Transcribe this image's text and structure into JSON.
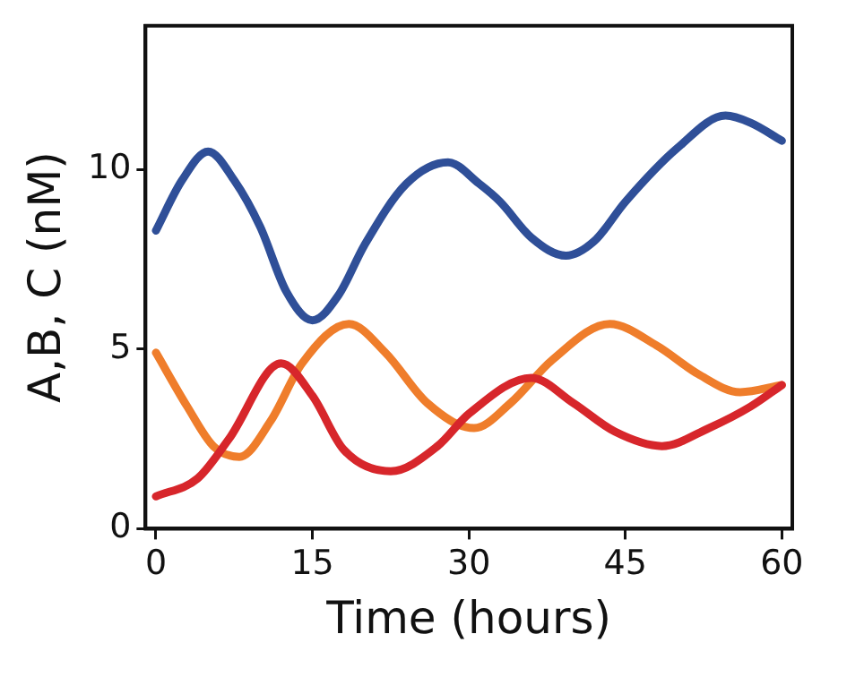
{
  "chart_data": {
    "type": "line",
    "xlabel": "Time (hours)",
    "ylabel": "A,B, C (nM)",
    "xlim": [
      -1,
      61
    ],
    "xticks": [
      0,
      15,
      30,
      45,
      60
    ],
    "ylim": [
      0,
      14
    ],
    "yticks": [
      0,
      5,
      10
    ],
    "grid": false,
    "legend": false,
    "marker": "none",
    "line_style": "solid",
    "series": [
      {
        "color": "#d7262b",
        "x": [
          0,
          4,
          7,
          12,
          15,
          18,
          22.5,
          27,
          30,
          36,
          40,
          44,
          48.5,
          53,
          57,
          60
        ],
        "values": [
          0.9,
          1.4,
          2.5,
          4.6,
          3.7,
          2.2,
          1.6,
          2.3,
          3.2,
          4.2,
          3.5,
          2.7,
          2.3,
          2.8,
          3.4,
          4.0
        ]
      },
      {
        "color": "#2f4f98",
        "x": [
          0,
          2.5,
          5,
          7.5,
          10,
          12.5,
          15,
          17.5,
          20,
          24,
          28,
          31,
          33,
          36,
          39.3,
          42,
          45,
          50,
          54.6,
          57,
          60
        ],
        "values": [
          8.3,
          9.7,
          10.5,
          9.7,
          8.4,
          6.6,
          5.8,
          6.5,
          7.9,
          9.6,
          10.2,
          9.6,
          9.1,
          8.1,
          7.6,
          8.0,
          9.1,
          10.6,
          11.5,
          11.3,
          10.8
        ]
      },
      {
        "color": "#ef7d2b",
        "x": [
          0,
          3,
          5.5,
          8,
          11,
          14,
          18.5,
          22,
          26,
          30.5,
          34,
          38,
          43.5,
          48,
          52,
          56,
          60
        ],
        "values": [
          4.9,
          3.4,
          2.3,
          2.0,
          3.0,
          4.6,
          5.7,
          4.9,
          3.5,
          2.8,
          3.5,
          4.7,
          5.7,
          5.1,
          4.3,
          3.8,
          4.0
        ]
      }
    ]
  }
}
